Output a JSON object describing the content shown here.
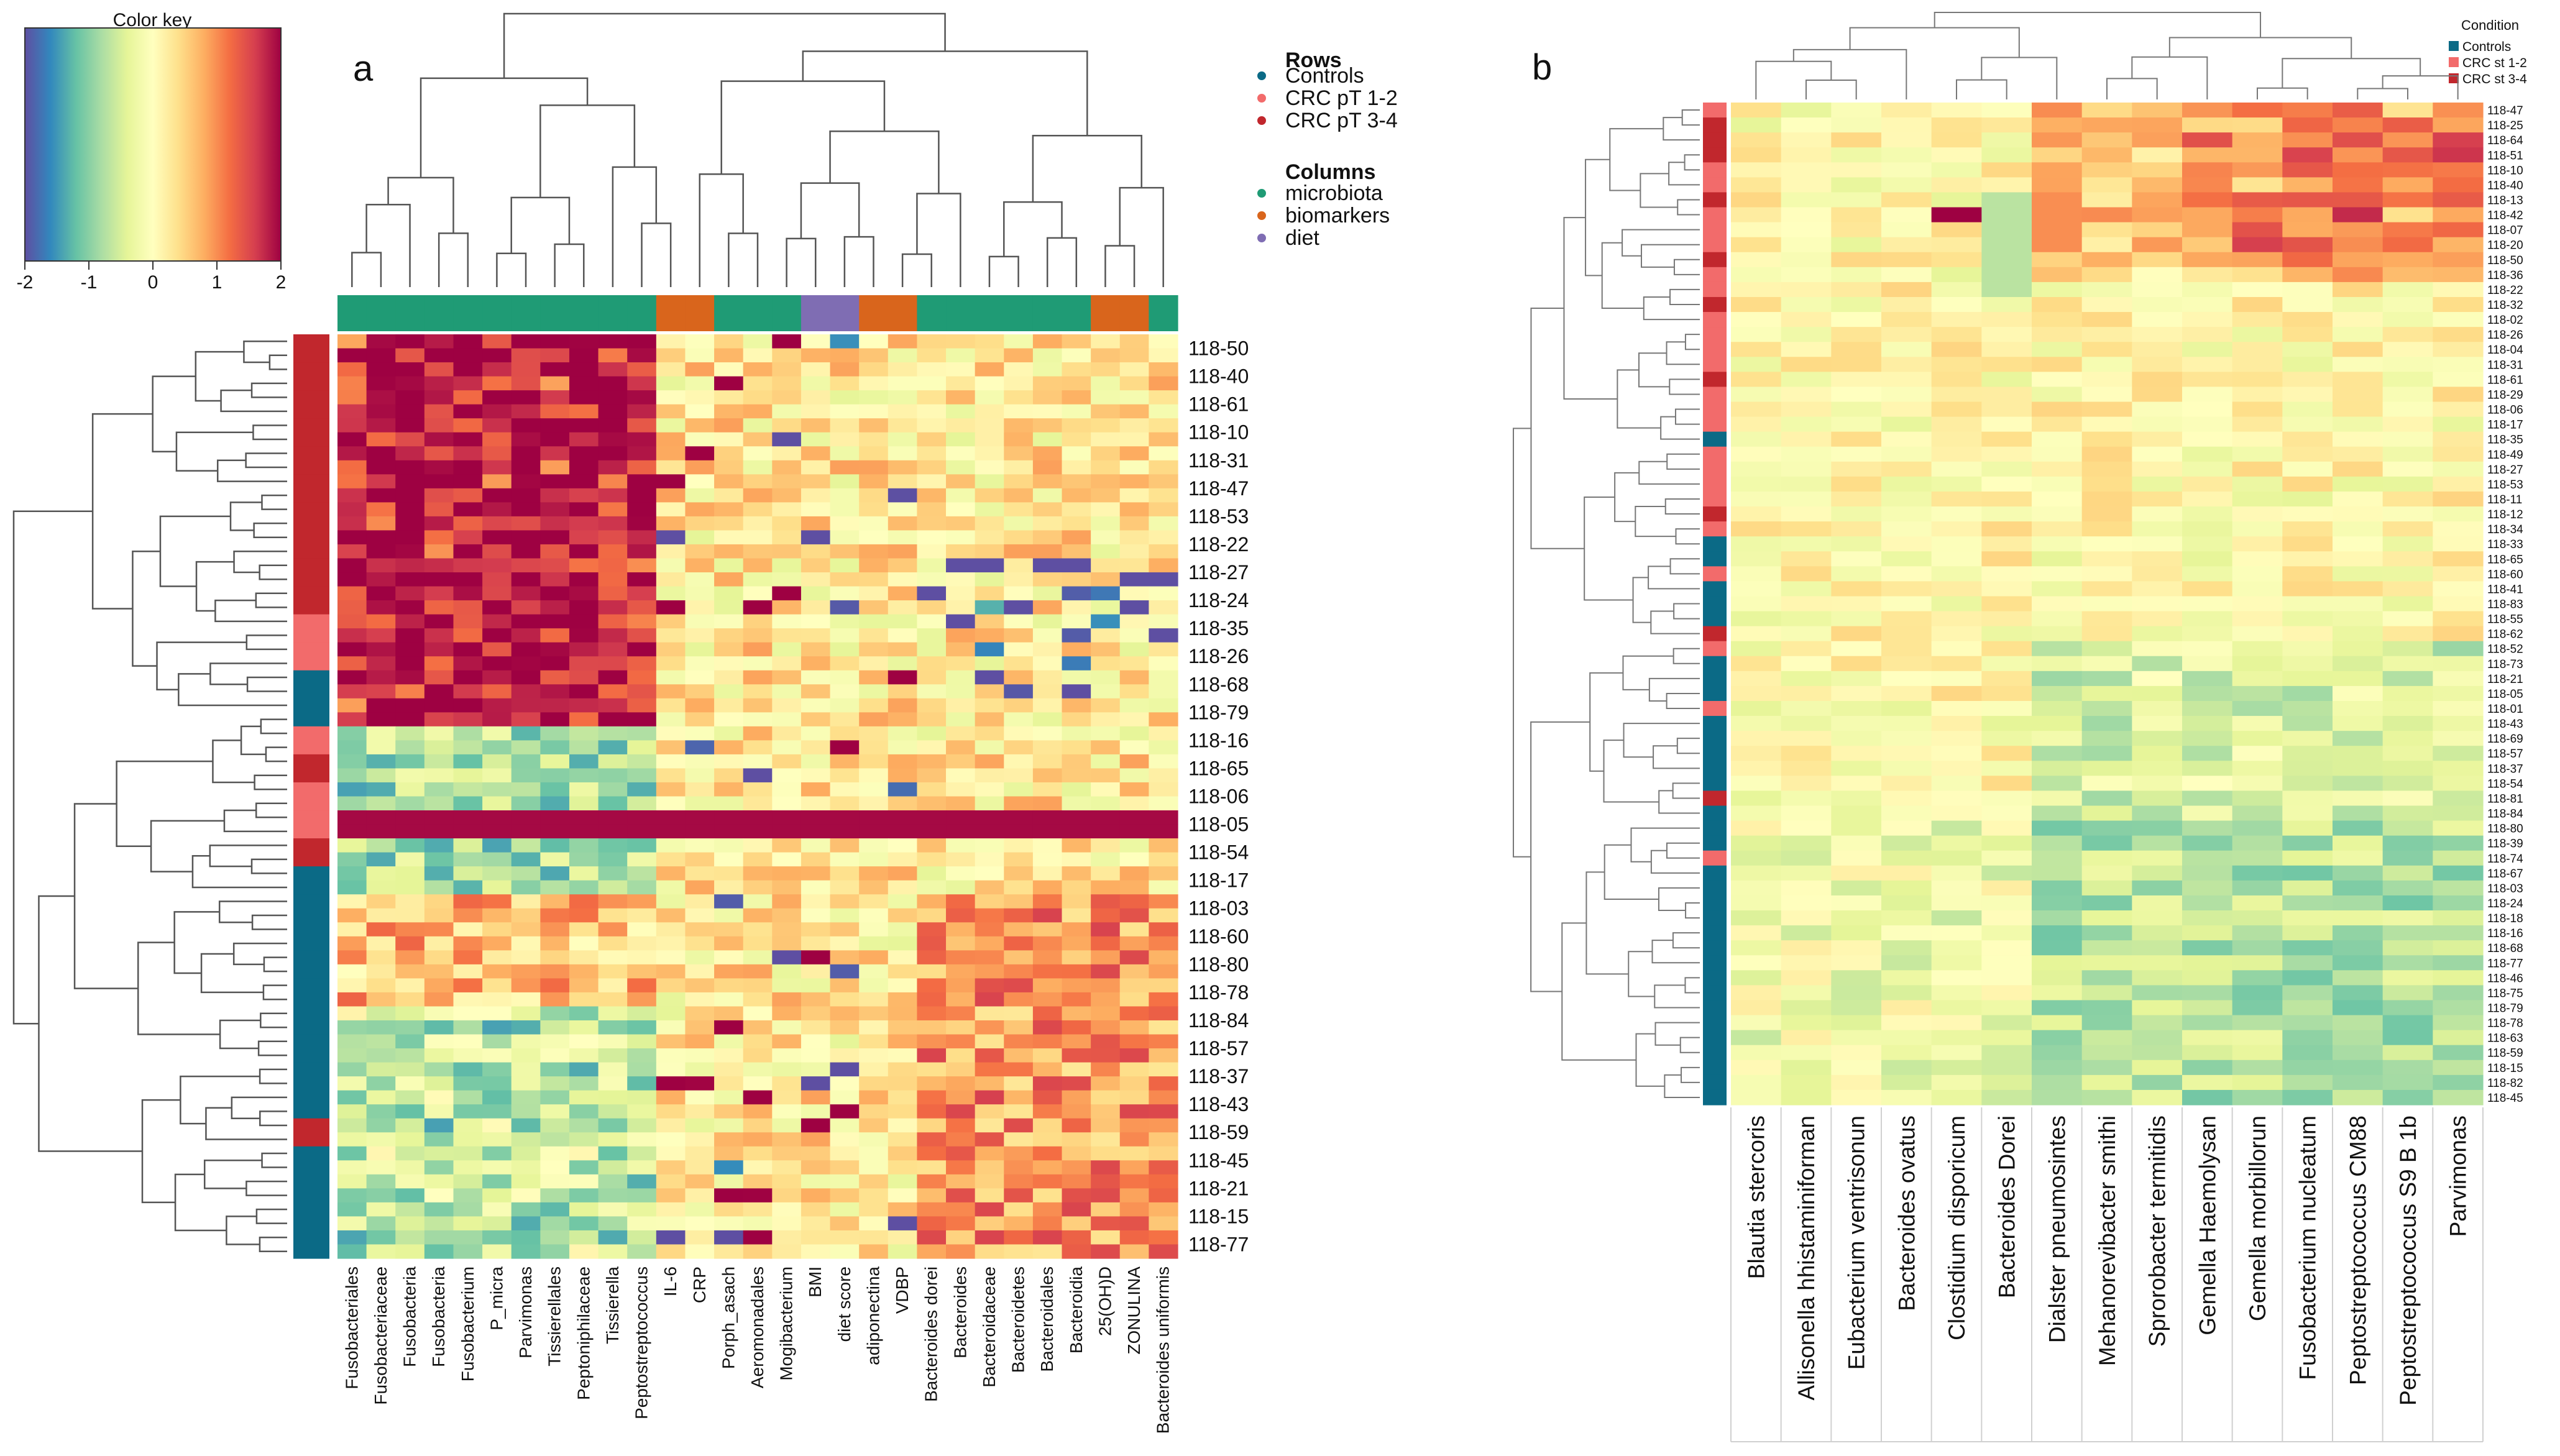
{
  "chart_data": [
    {
      "type": "heatmap",
      "panel_label": "a",
      "color_key": {
        "title": "Color key",
        "ticks": [
          "-2",
          "-1",
          "0",
          "1",
          "2"
        ],
        "range": [
          -2,
          2
        ]
      },
      "legend": {
        "rows_title": "Rows",
        "rows": [
          {
            "label": "Controls",
            "color": "#0b6a86"
          },
          {
            "label": "CRC pT 1-2",
            "color": "#f26b6b"
          },
          {
            "label": "CRC pT 3-4",
            "color": "#c1272d"
          }
        ],
        "columns_title": "Columns",
        "columns": [
          {
            "label": "microbiota",
            "color": "#1f9b75"
          },
          {
            "label": "biomarkers",
            "color": "#d9651c"
          },
          {
            "label": "diet",
            "color": "#7f6db3"
          }
        ]
      },
      "column_labels": [
        "Fusobacteriales",
        "Fusobacteriaceae",
        "Fusobacteria",
        "Fusobacteria",
        "Fusobacterium",
        "P_micra",
        "Parvimonas",
        "Tissierellales",
        "Peptoniphilaceae",
        "Tissierella",
        "Peptostreptococcus",
        "IL-6",
        "CRP",
        "Porph_asach",
        "Aeromonadales",
        "Mogibacterium",
        "BMI",
        "diet score",
        "adiponectina",
        "VDBP",
        "Bacteroides dorei",
        "Bacteroides",
        "Bacteroidaceae",
        "Bacteroidetes",
        "Bacteroidales",
        "Bacteroidia",
        "25(OH)D",
        "ZONULINA",
        "Bacteroides uniformis"
      ],
      "column_groups": [
        "microbiota",
        "microbiota",
        "microbiota",
        "microbiota",
        "microbiota",
        "microbiota",
        "microbiota",
        "microbiota",
        "microbiota",
        "microbiota",
        "microbiota",
        "biomarkers",
        "biomarkers",
        "microbiota",
        "microbiota",
        "microbiota",
        "diet",
        "diet",
        "biomarkers",
        "biomarkers",
        "microbiota",
        "microbiota",
        "microbiota",
        "microbiota",
        "microbiota",
        "microbiota",
        "biomarkers",
        "biomarkers",
        "microbiota"
      ],
      "row_labels_shown": [
        "118-50",
        "118-40",
        "118-61",
        "118-10",
        "118-31",
        "118-47",
        "118-53",
        "118-22",
        "118-27",
        "118-24",
        "118-35",
        "118-26",
        "118-68",
        "118-79",
        "118-16",
        "118-65",
        "118-06",
        "118-05",
        "118-54",
        "118-17",
        "118-03",
        "118-60",
        "118-80",
        "118-78",
        "118-84",
        "118-57",
        "118-37",
        "118-43",
        "118-59",
        "118-45",
        "118-21",
        "118-15",
        "118-77"
      ],
      "row_conditions": [
        "CRC pT 3-4",
        "CRC pT 3-4",
        "CRC pT 3-4",
        "CRC pT 3-4",
        "CRC pT 3-4",
        "CRC pT 3-4",
        "CRC pT 3-4",
        "CRC pT 3-4",
        "CRC pT 3-4",
        "CRC pT 3-4",
        "CRC pT 1-2",
        "CRC pT 1-2",
        "Controls",
        "Controls",
        "CRC pT 1-2",
        "CRC pT 3-4",
        "CRC pT 1-2",
        "CRC pT 1-2",
        "CRC pT 3-4",
        "Controls",
        "Controls",
        "Controls",
        "Controls",
        "Controls",
        "Controls",
        "Controls",
        "Controls",
        "Controls",
        "CRC pT 3-4",
        "Controls",
        "Controls",
        "Controls",
        "Controls"
      ]
    },
    {
      "type": "heatmap",
      "panel_label": "b",
      "legend": {
        "title": "Condition",
        "entries": [
          {
            "label": "Controls",
            "color": "#0b6a86"
          },
          {
            "label": "CRC st 1-2",
            "color": "#f26b6b"
          },
          {
            "label": "CRC st 3-4",
            "color": "#c1272d"
          }
        ]
      },
      "column_labels": [
        "Blautia stercoris",
        "Allisonella hhistaminiforman",
        "Eubacterium ventrisonun",
        "Bacteroides ovatus",
        "Clostidium disporicum",
        "Bacteroides Dorei",
        "Dialster pneumosintes",
        "Mehanorevibacter smithi",
        "Sprorobacter termitidis",
        "Gemella Haemolysan",
        "Gemella morbillorun",
        "Fusobacterium nucleatum",
        "Peptostreptococcus CM88",
        "Peptostreptococcus S9 B 1b",
        "Parvimonas"
      ],
      "row_labels": [
        "118-47",
        "118-25",
        "118-64",
        "118-51",
        "118-10",
        "118-40",
        "118-13",
        "118-42",
        "118-07",
        "118-20",
        "118-50",
        "118-36",
        "118-22",
        "118-32",
        "118-02",
        "118-26",
        "118-04",
        "118-31",
        "118-61",
        "118-29",
        "118-06",
        "118-17",
        "118-35",
        "118-49",
        "118-27",
        "118-53",
        "118-11",
        "118-12",
        "118-34",
        "118-33",
        "118-65",
        "118-60",
        "118-41",
        "118-83",
        "118-55",
        "118-62",
        "118-52",
        "118-73",
        "118-21",
        "118-05",
        "118-01",
        "118-43",
        "118-69",
        "118-57",
        "118-37",
        "118-54",
        "118-81",
        "118-84",
        "118-80",
        "118-39",
        "118-74",
        "118-67",
        "118-03",
        "118-24",
        "118-18",
        "118-16",
        "118-68",
        "118-77",
        "118-46",
        "118-75",
        "118-79",
        "118-78",
        "118-63",
        "118-59",
        "118-15",
        "118-82",
        "118-45"
      ],
      "row_conditions": [
        "CRC st 1-2",
        "CRC st 3-4",
        "CRC st 3-4",
        "CRC st 3-4",
        "CRC st 1-2",
        "CRC st 1-2",
        "CRC st 3-4",
        "CRC st 1-2",
        "CRC st 1-2",
        "CRC st 1-2",
        "CRC st 3-4",
        "CRC st 1-2",
        "CRC st 1-2",
        "CRC st 3-4",
        "CRC st 1-2",
        "CRC st 1-2",
        "CRC st 1-2",
        "CRC st 1-2",
        "CRC st 3-4",
        "CRC st 1-2",
        "CRC st 1-2",
        "CRC st 1-2",
        "Controls",
        "CRC st 1-2",
        "CRC st 1-2",
        "CRC st 1-2",
        "CRC st 1-2",
        "CRC st 3-4",
        "CRC st 1-2",
        "Controls",
        "Controls",
        "CRC st 1-2",
        "Controls",
        "Controls",
        "Controls",
        "CRC st 3-4",
        "CRC st 1-2",
        "Controls",
        "Controls",
        "Controls",
        "CRC st 1-2",
        "Controls",
        "Controls",
        "Controls",
        "Controls",
        "Controls",
        "CRC st 3-4",
        "Controls",
        "Controls",
        "Controls",
        "CRC st 1-2",
        "Controls",
        "Controls",
        "Controls",
        "Controls",
        "Controls",
        "Controls",
        "Controls",
        "Controls",
        "Controls",
        "Controls",
        "Controls",
        "Controls",
        "Controls",
        "Controls",
        "Controls",
        "Controls"
      ]
    }
  ]
}
